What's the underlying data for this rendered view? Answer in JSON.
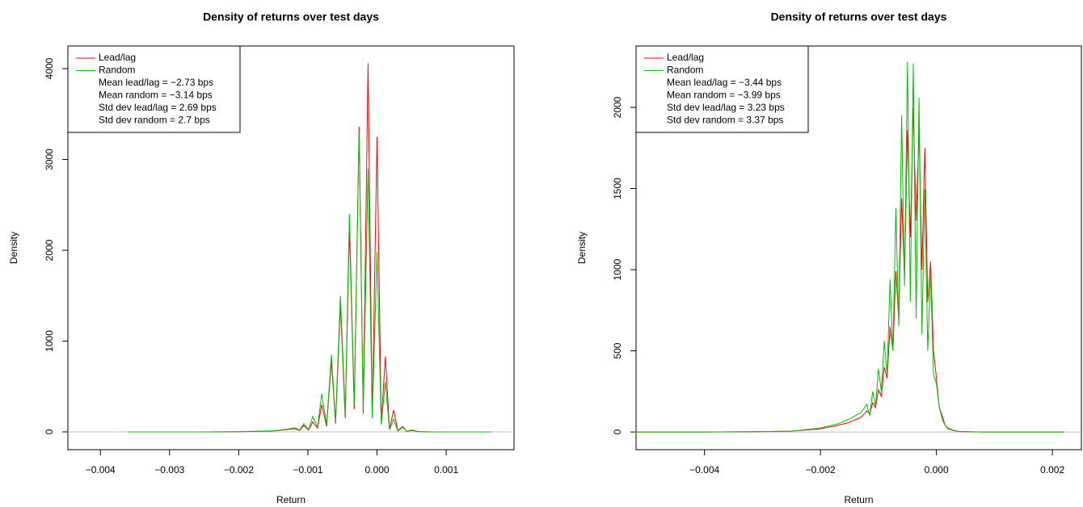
{
  "chart_data": [
    {
      "type": "line",
      "title": "Density of returns over test days",
      "x_label": "Return",
      "y_label": "Density",
      "xlim": [
        -0.00447,
        0.00198
      ],
      "ylim": [
        -196,
        4249
      ],
      "xticks": [
        {
          "value": -0.004,
          "label": "−0.004"
        },
        {
          "value": -0.003,
          "label": "−0.003"
        },
        {
          "value": -0.002,
          "label": "−0.002"
        },
        {
          "value": -0.001,
          "label": "−0.001"
        },
        {
          "value": 0,
          "label": "0.000"
        },
        0.001
      ],
      "yticks": [
        0,
        1000,
        2000,
        3000,
        4000
      ],
      "zero_line": true,
      "legend": "top-left",
      "legend_notes": [
        "Mean lead/lag = −2.73 bps",
        "Mean random = −3.14 bps",
        "Std dev lead/lag = 2.69 bps",
        "Std dev random = 2.7 bps"
      ],
      "x": [
        -0.0036,
        -0.003,
        -0.0025,
        -0.002,
        -0.0015,
        -0.0013,
        -0.00119,
        -0.00112,
        -0.00106,
        -0.00099,
        -0.00093,
        -0.00086,
        -0.0008,
        -0.00073,
        -0.00066,
        -0.0006,
        -0.00053,
        -0.00046,
        -0.0004,
        -0.00033,
        -0.00026,
        -0.0002,
        -0.00013,
        -7e-05,
        0.0,
        6e-05,
        0.00012,
        0.00018,
        0.00024,
        0.0003,
        0.00037,
        0.00043,
        0.0005,
        0.0006,
        0.0008,
        0.001,
        0.00165
      ],
      "series": [
        {
          "name": "Lead/lag",
          "color": "#ff0000",
          "values": [
            0,
            0,
            0,
            2,
            10,
            25,
            35,
            15,
            70,
            20,
            110,
            40,
            300,
            60,
            780,
            90,
            1400,
            150,
            2250,
            250,
            3360,
            200,
            4060,
            150,
            3250,
            100,
            830,
            30,
            240,
            15,
            60,
            5,
            20,
            3,
            0,
            0,
            0
          ]
        },
        {
          "name": "Random",
          "color": "#00c000",
          "values": [
            0,
            0,
            0,
            2,
            12,
            30,
            45,
            20,
            90,
            25,
            170,
            50,
            420,
            80,
            850,
            120,
            1500,
            200,
            2400,
            300,
            3300,
            250,
            2900,
            150,
            1980,
            80,
            550,
            25,
            140,
            10,
            50,
            5,
            15,
            3,
            0,
            0,
            0
          ]
        }
      ]
    },
    {
      "type": "line",
      "title": "Density of returns over test days",
      "x_label": "Return",
      "y_label": "Density",
      "xlim": [
        -0.00518,
        0.0025
      ],
      "ylim": [
        -109,
        2378
      ],
      "xticks": [
        {
          "value": -0.004,
          "label": "−0.004"
        },
        {
          "value": -0.002,
          "label": "−0.002"
        },
        {
          "value": 0,
          "label": "0.000"
        },
        0.002
      ],
      "yticks": [
        0,
        500,
        1000,
        1500,
        2000
      ],
      "zero_line": true,
      "legend": "top-left",
      "legend_notes": [
        "Mean lead/lag = −3.44 bps",
        "Mean random = −3.99 bps",
        "Std dev lead/lag = 3.23 bps",
        "Std dev random = 3.37 bps"
      ],
      "x": [
        -0.0052,
        -0.004,
        -0.003,
        -0.0025,
        -0.002,
        -0.0017,
        -0.0015,
        -0.0013,
        -0.0012,
        -0.00115,
        -0.0011,
        -0.00105,
        -0.001,
        -0.00095,
        -0.0009,
        -0.00085,
        -0.0008,
        -0.00075,
        -0.0007,
        -0.00065,
        -0.0006,
        -0.00055,
        -0.0005,
        -0.00045,
        -0.0004,
        -0.00035,
        -0.0003,
        -0.00025,
        -0.0002,
        -0.00015,
        -0.0001,
        -5e-05,
        0.0,
        5e-05,
        0.0001,
        0.00015,
        0.0002,
        0.0003,
        0.0004,
        0.0006,
        0.0008,
        0.0012,
        0.0022
      ],
      "series": [
        {
          "name": "Lead/lag",
          "color": "#ff0000",
          "values": [
            0,
            0,
            2,
            5,
            20,
            40,
            60,
            90,
            130,
            110,
            180,
            150,
            260,
            220,
            400,
            330,
            650,
            500,
            990,
            700,
            1440,
            950,
            1860,
            1200,
            2000,
            1300,
            1860,
            1000,
            1750,
            800,
            1050,
            500,
            330,
            150,
            100,
            40,
            25,
            10,
            3,
            1,
            0,
            0,
            0
          ]
        },
        {
          "name": "Random",
          "color": "#00c000",
          "values": [
            0,
            0,
            2,
            5,
            25,
            50,
            80,
            120,
            170,
            100,
            250,
            160,
            390,
            250,
            560,
            350,
            940,
            500,
            1380,
            650,
            1950,
            900,
            2280,
            800,
            2270,
            700,
            2060,
            600,
            1500,
            500,
            980,
            350,
            300,
            150,
            80,
            40,
            20,
            8,
            3,
            1,
            0,
            0,
            0
          ]
        }
      ]
    }
  ]
}
